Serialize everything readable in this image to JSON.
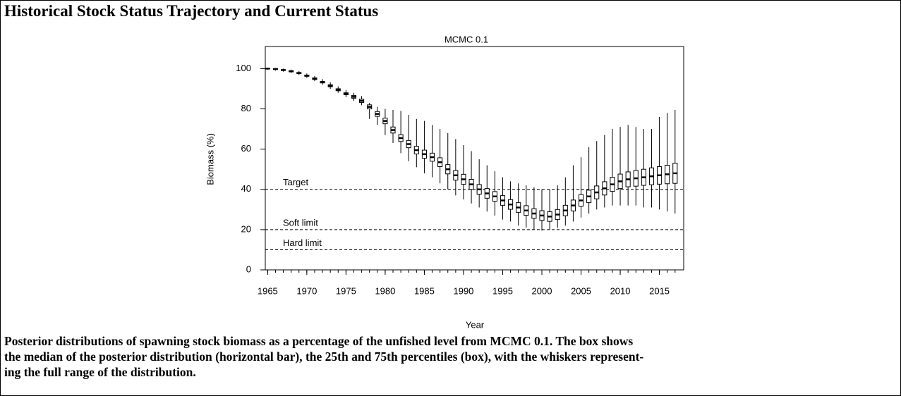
{
  "title": "Historical Stock Status Trajectory and Current Status",
  "caption": [
    "Posterior distributions of spawning stock biomass as a percentage of the unfished level from MCMC 0.1. The box shows",
    "the median of the posterior distribution (horizontal bar), the 25th and 75th percentiles (box), with the whiskers represent-",
    "ing the full range of the distribution."
  ],
  "chart_data": {
    "type": "box",
    "title": "MCMC 0.1",
    "xlabel": "Year",
    "ylabel": "Biomass (%)",
    "x": [
      1965,
      1966,
      1967,
      1968,
      1969,
      1970,
      1971,
      1972,
      1973,
      1974,
      1975,
      1976,
      1977,
      1978,
      1979,
      1980,
      1981,
      1982,
      1983,
      1984,
      1985,
      1986,
      1987,
      1988,
      1989,
      1990,
      1991,
      1992,
      1993,
      1994,
      1995,
      1996,
      1997,
      1998,
      1999,
      2000,
      2001,
      2002,
      2003,
      2004,
      2005,
      2006,
      2007,
      2008,
      2009,
      2010,
      2011,
      2012,
      2013,
      2014,
      2015,
      2016,
      2017
    ],
    "median": [
      100,
      99.8,
      99.3,
      98.7,
      97.8,
      96.5,
      95,
      93.3,
      91.5,
      89.5,
      87.5,
      86,
      84,
      81,
      77.5,
      74,
      69.5,
      65.5,
      62.5,
      59.5,
      57.5,
      56,
      53.5,
      50,
      47,
      45,
      42.5,
      40,
      38,
      36.5,
      34.5,
      32.5,
      31,
      29.5,
      28,
      27,
      26.5,
      27.5,
      29.5,
      32,
      34.5,
      36.5,
      38.5,
      40.5,
      42.5,
      44,
      45,
      45.5,
      46,
      46.5,
      47,
      47.5,
      48
    ],
    "q1": [
      99.9,
      99.6,
      99.1,
      98.4,
      97.5,
      96.2,
      94.6,
      92.9,
      91,
      89,
      87,
      85.3,
      83.2,
      80,
      76.3,
      72.6,
      68,
      63.8,
      60.7,
      57.6,
      55.5,
      54,
      51.3,
      47.7,
      44.6,
      42.5,
      40,
      37.6,
      35.6,
      34.1,
      32.1,
      30.1,
      28.6,
      27.1,
      25.6,
      24.6,
      24.1,
      25,
      26.9,
      29.3,
      31.6,
      33.4,
      35.3,
      37.2,
      39,
      40.4,
      41.3,
      41.6,
      42,
      42.3,
      42.6,
      42.8,
      43
    ],
    "q3": [
      100.1,
      100,
      99.5,
      99,
      98.1,
      96.8,
      95.4,
      93.7,
      92,
      90,
      88,
      86.7,
      84.8,
      82,
      78.7,
      75.4,
      71,
      67.2,
      64.3,
      61.4,
      59.5,
      58,
      55.7,
      52.3,
      49.4,
      47.5,
      45,
      42.4,
      40.4,
      38.9,
      36.9,
      34.9,
      33.4,
      31.9,
      30.4,
      29.4,
      28.9,
      30,
      32.1,
      34.7,
      37.4,
      39.6,
      41.7,
      43.8,
      46,
      47.6,
      48.7,
      49.4,
      50,
      50.7,
      51.3,
      52,
      53
    ],
    "min": [
      99.5,
      99,
      98.5,
      97.8,
      96.8,
      95.4,
      93.8,
      92,
      90,
      88,
      85.8,
      84,
      81.8,
      75,
      72,
      67,
      63,
      58,
      54,
      51,
      48,
      46,
      43,
      40,
      37,
      35,
      33,
      31,
      29,
      27,
      25,
      24,
      22,
      21,
      20,
      19.5,
      20,
      21,
      22,
      24,
      26,
      28,
      30,
      31,
      32,
      32,
      32,
      32,
      31,
      31,
      30,
      29,
      28
    ],
    "max": [
      100.4,
      100.3,
      100,
      99.5,
      98.8,
      97.6,
      96.3,
      94.8,
      93.2,
      91.2,
      89.4,
      88,
      86.4,
      83,
      81,
      80,
      79.5,
      79,
      77,
      75,
      74,
      72,
      70,
      68,
      65,
      62,
      59,
      55,
      52,
      49,
      46,
      44,
      43,
      42,
      41,
      40,
      40,
      42,
      46,
      52,
      56,
      61,
      64,
      67,
      70,
      71,
      72,
      71,
      70,
      70,
      76,
      78,
      79.5
    ],
    "xlim": [
      1964.7,
      2018.1
    ],
    "ylim": [
      0,
      111
    ],
    "xticks": [
      1965,
      1970,
      1975,
      1980,
      1985,
      1990,
      1995,
      2000,
      2005,
      2010,
      2015
    ],
    "yticks": [
      0,
      20,
      40,
      60,
      80,
      100
    ],
    "reference_lines": [
      {
        "value": 40,
        "label": "Target"
      },
      {
        "value": 20,
        "label": "Soft limit"
      },
      {
        "value": 10,
        "label": "Hard limit"
      }
    ],
    "color": "#000000",
    "box_fill": "#ffffff"
  }
}
